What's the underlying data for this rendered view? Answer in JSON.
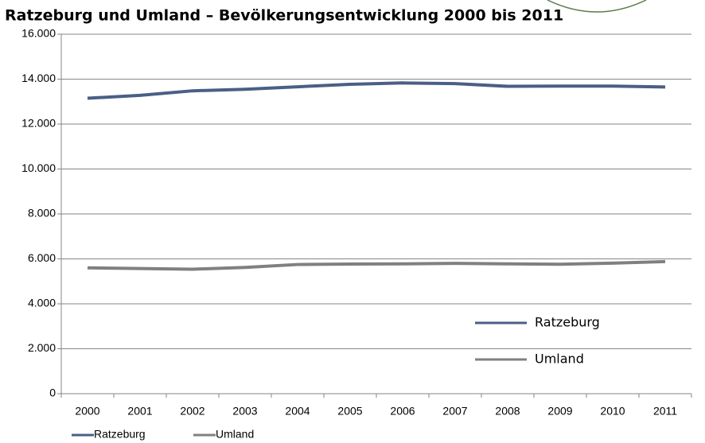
{
  "chart_data": {
    "type": "line",
    "title": "Ratzeburg und Umland – Bevölkerungsentwicklung 2000 bis 2011",
    "categories": [
      "2000",
      "2001",
      "2002",
      "2003",
      "2004",
      "2005",
      "2006",
      "2007",
      "2008",
      "2009",
      "2010",
      "2011"
    ],
    "series": [
      {
        "name": "Ratzeburg",
        "color": "#4a5f86",
        "values": [
          13150,
          13280,
          13480,
          13550,
          13660,
          13770,
          13830,
          13800,
          13680,
          13690,
          13690,
          13650
        ]
      },
      {
        "name": "Umland",
        "color": "#808080",
        "values": [
          5600,
          5570,
          5540,
          5620,
          5750,
          5770,
          5780,
          5800,
          5780,
          5760,
          5810,
          5880
        ]
      }
    ],
    "ylim": [
      0,
      16000
    ],
    "yticks": [
      0,
      {
        "value": 2000,
        "label": "2.000"
      },
      {
        "value": 4000,
        "label": "4.000"
      },
      {
        "value": 6000,
        "label": "6.000"
      },
      {
        "value": 8000,
        "label": "8.000"
      },
      {
        "value": 10000,
        "label": "10.000"
      },
      {
        "value": 12000,
        "label": "12.000"
      },
      {
        "value": 14000,
        "label": "14.000"
      },
      {
        "value": 16000,
        "label": "16.000"
      }
    ],
    "grid": true
  }
}
